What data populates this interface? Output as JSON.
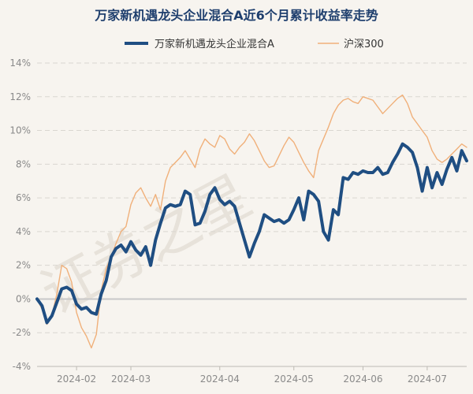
{
  "chart_data": {
    "type": "line",
    "title": "万家新机遇龙头企业混合A近6个月累计收益率走势",
    "watermark": "证券之星",
    "xlabel": "",
    "ylabel": "",
    "ylim": [
      -4,
      14
    ],
    "yticks": [
      "-4%",
      "-2%",
      "0%",
      "2%",
      "4%",
      "6%",
      "8%",
      "10%",
      "12%",
      "14%"
    ],
    "xticks": [
      "2024-02",
      "2024-03",
      "2024-04",
      "2024-05",
      "2024-06",
      "2024-07"
    ],
    "xtick_index": [
      8,
      19,
      37,
      52,
      66,
      79
    ],
    "n_points": 88,
    "series": [
      {
        "name": "万家新机遇龙头企业混合A",
        "color": "#1f4e82",
        "values": [
          0.0,
          -0.4,
          -1.4,
          -1.0,
          -0.2,
          0.6,
          0.7,
          0.5,
          -0.3,
          -0.6,
          -0.5,
          -0.8,
          -0.9,
          0.3,
          1.1,
          2.5,
          3.0,
          3.2,
          2.8,
          3.4,
          2.9,
          2.6,
          3.1,
          2.0,
          3.5,
          4.5,
          5.4,
          5.6,
          5.5,
          5.6,
          6.4,
          6.2,
          4.4,
          4.5,
          5.2,
          6.2,
          6.6,
          5.9,
          5.6,
          5.8,
          5.5,
          4.5,
          3.5,
          2.5,
          3.3,
          4.0,
          5.0,
          4.8,
          4.6,
          4.7,
          4.5,
          4.7,
          5.3,
          6.0,
          4.7,
          6.4,
          6.2,
          5.8,
          4.0,
          3.5,
          5.3,
          5.0,
          7.2,
          7.1,
          7.5,
          7.4,
          7.6,
          7.5,
          7.5,
          7.8,
          7.4,
          7.5,
          8.1,
          8.6,
          9.2,
          9.0,
          8.7,
          7.8,
          6.4,
          7.8,
          6.6,
          7.5,
          6.8,
          7.7,
          8.4,
          7.6,
          8.8,
          8.2
        ]
      },
      {
        "name": "沪深300",
        "color": "#f0b07a",
        "values": [
          0.0,
          -0.6,
          -1.5,
          -1.0,
          0.3,
          2.0,
          1.8,
          1.0,
          -0.8,
          -1.7,
          -2.2,
          -2.9,
          -2.1,
          0.5,
          1.8,
          2.5,
          3.3,
          4.0,
          4.3,
          5.6,
          6.3,
          6.6,
          6.0,
          5.5,
          6.2,
          5.3,
          7.0,
          7.8,
          8.1,
          8.4,
          8.8,
          8.3,
          7.8,
          8.9,
          9.5,
          9.2,
          9.0,
          9.7,
          9.5,
          8.9,
          8.6,
          9.0,
          9.3,
          9.8,
          9.4,
          8.8,
          8.2,
          7.8,
          7.9,
          8.5,
          9.1,
          9.6,
          9.3,
          8.7,
          8.1,
          7.6,
          7.2,
          8.8,
          9.5,
          10.2,
          11.0,
          11.5,
          11.8,
          11.9,
          11.7,
          11.6,
          12.0,
          11.9,
          11.8,
          11.4,
          11.0,
          11.3,
          11.6,
          11.9,
          12.1,
          11.6,
          10.8,
          10.4,
          10.0,
          9.6,
          8.8,
          8.3,
          8.1,
          8.3,
          8.6,
          8.9,
          9.2,
          9.0
        ]
      }
    ]
  }
}
